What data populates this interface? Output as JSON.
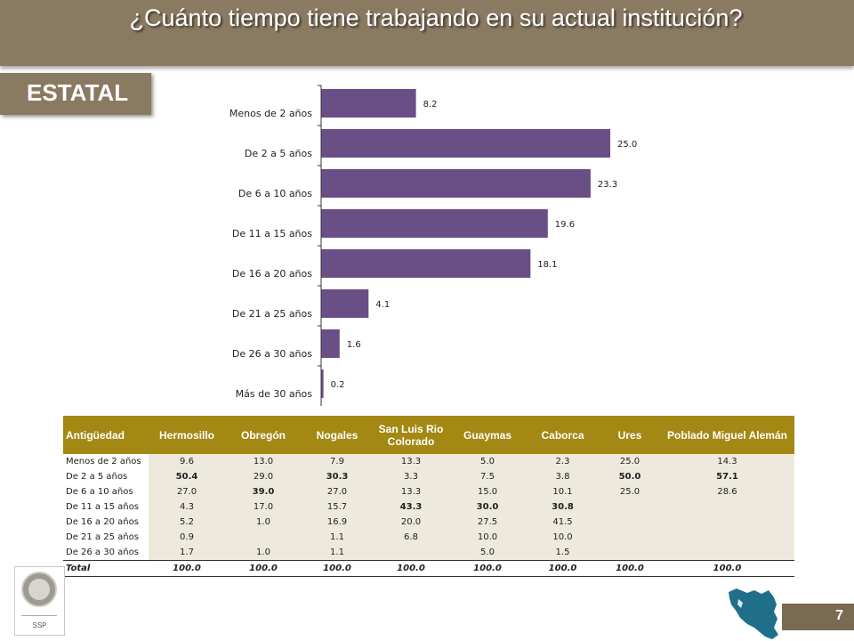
{
  "header": {
    "title": "¿Cuánto tiempo tiene trabajando en su actual institución?"
  },
  "badge": {
    "label": "ESTATAL"
  },
  "chart_data": {
    "type": "bar",
    "orientation": "horizontal",
    "categories": [
      "Menos de 2 años",
      "De 2 a 5 años",
      "De 6 a 10 años",
      "De 11 a 15 años",
      "De 16 a 20 años",
      "De 21 a 25 años",
      "De 26 a 30 años",
      "Más de 30 años"
    ],
    "values": [
      8.2,
      25.0,
      23.3,
      19.6,
      18.1,
      4.1,
      1.6,
      0.2
    ],
    "value_labels": [
      "8.2",
      "25.0",
      "23.3",
      "19.6",
      "18.1",
      "4.1",
      "1.6",
      "0.2"
    ],
    "bar_color": "#6a4e86",
    "xlim": [
      0,
      28
    ],
    "grid": false,
    "legend": "none"
  },
  "table": {
    "headers": [
      "Antigüedad",
      "Hermosillo",
      "Obregón",
      "Nogales",
      "San Luis Rio Colorado",
      "Guaymas",
      "Caborca",
      "Ures",
      "Poblado Miguel Alemán"
    ],
    "rows": [
      {
        "cells": [
          "Menos de 2 años",
          "9.6",
          "13.0",
          "7.9",
          "13.3",
          "5.0",
          "2.3",
          "25.0",
          "14.3"
        ],
        "bold": []
      },
      {
        "cells": [
          "De 2 a 5 años",
          "50.4",
          "29.0",
          "30.3",
          "3.3",
          "7.5",
          "3.8",
          "50.0",
          "57.1"
        ],
        "bold": [
          1,
          3,
          7,
          8
        ]
      },
      {
        "cells": [
          "De 6 a 10 años",
          "27.0",
          "39.0",
          "27.0",
          "13.3",
          "15.0",
          "10.1",
          "25.0",
          "28.6"
        ],
        "bold": [
          2
        ]
      },
      {
        "cells": [
          "De 11 a 15 años",
          "4.3",
          "17.0",
          "15.7",
          "43.3",
          "30.0",
          "30.8",
          "",
          ""
        ],
        "bold": [
          4,
          5,
          6
        ]
      },
      {
        "cells": [
          "De 16 a 20 años",
          "5.2",
          "1.0",
          "16.9",
          "20.0",
          "27.5",
          "41.5",
          "",
          ""
        ],
        "bold": []
      },
      {
        "cells": [
          "De 21 a 25 años",
          "0.9",
          "",
          "1.1",
          "6.8",
          "10.0",
          "10.0",
          "",
          ""
        ],
        "bold": []
      },
      {
        "cells": [
          "De 26 a 30 años",
          "1.7",
          "1.0",
          "1.1",
          "",
          "5.0",
          "1.5",
          "",
          ""
        ],
        "bold": []
      }
    ],
    "total": [
      "Total",
      "100.0",
      "100.0",
      "100.0",
      "100.0",
      "100.0",
      "100.0",
      "100.0",
      "100.0"
    ]
  },
  "colors": {
    "header_bar": "#8a7a62",
    "table_header": "#a38814",
    "table_cell": "#ede9dc",
    "map": "#1f6f8b",
    "page_badge": "#7b6a52"
  },
  "footer": {
    "logo_text": "SSP",
    "page_number": "7"
  },
  "icons": {
    "logo": "ssp-seal-icon",
    "map": "sonora-map-icon"
  }
}
